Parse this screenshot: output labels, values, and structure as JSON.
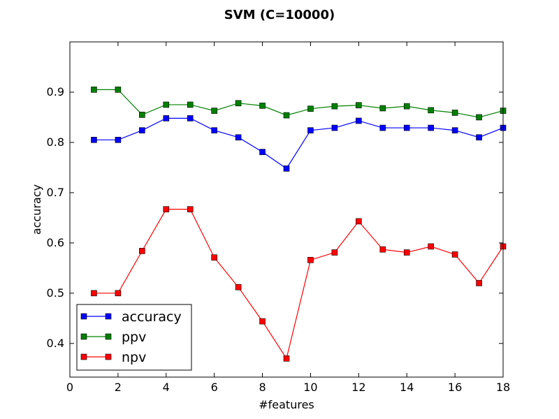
{
  "chart_data": {
    "type": "line",
    "title": "SVM (C=10000)",
    "xlabel": "#features",
    "ylabel": "accuracy",
    "xlim": [
      0,
      18
    ],
    "ylim": [
      0.333,
      1.0
    ],
    "xticks": [
      0,
      2,
      4,
      6,
      8,
      10,
      12,
      14,
      16,
      18
    ],
    "xtick_labels": [
      "0",
      "2",
      "4",
      "6",
      "8",
      "10",
      "12",
      "14",
      "16",
      "18"
    ],
    "yticks": [
      0.4,
      0.5,
      0.6,
      0.7,
      0.8,
      0.9
    ],
    "ytick_labels": [
      "0.4",
      "0.5",
      "0.6",
      "0.7",
      "0.8",
      "0.9"
    ],
    "grid": false,
    "legend_position": "lower-left",
    "x": [
      1,
      2,
      3,
      4,
      5,
      6,
      7,
      8,
      9,
      10,
      11,
      12,
      13,
      14,
      15,
      16,
      17,
      18
    ],
    "series": [
      {
        "name": "accuracy",
        "color": "#0000ff",
        "marker": "square",
        "values": [
          0.805,
          0.805,
          0.824,
          0.848,
          0.848,
          0.824,
          0.81,
          0.781,
          0.748,
          0.824,
          0.829,
          0.843,
          0.829,
          0.829,
          0.829,
          0.824,
          0.81,
          0.829
        ]
      },
      {
        "name": "ppv",
        "color": "#008000",
        "marker": "square",
        "values": [
          0.905,
          0.905,
          0.855,
          0.875,
          0.875,
          0.863,
          0.878,
          0.873,
          0.854,
          0.867,
          0.872,
          0.874,
          0.868,
          0.872,
          0.864,
          0.859,
          0.85,
          0.863
        ]
      },
      {
        "name": "npv",
        "color": "#ff0000",
        "marker": "square",
        "values": [
          0.5,
          0.5,
          0.584,
          0.667,
          0.667,
          0.571,
          0.512,
          0.444,
          0.37,
          0.566,
          0.581,
          0.643,
          0.587,
          0.581,
          0.593,
          0.577,
          0.52,
          0.593
        ]
      }
    ]
  }
}
